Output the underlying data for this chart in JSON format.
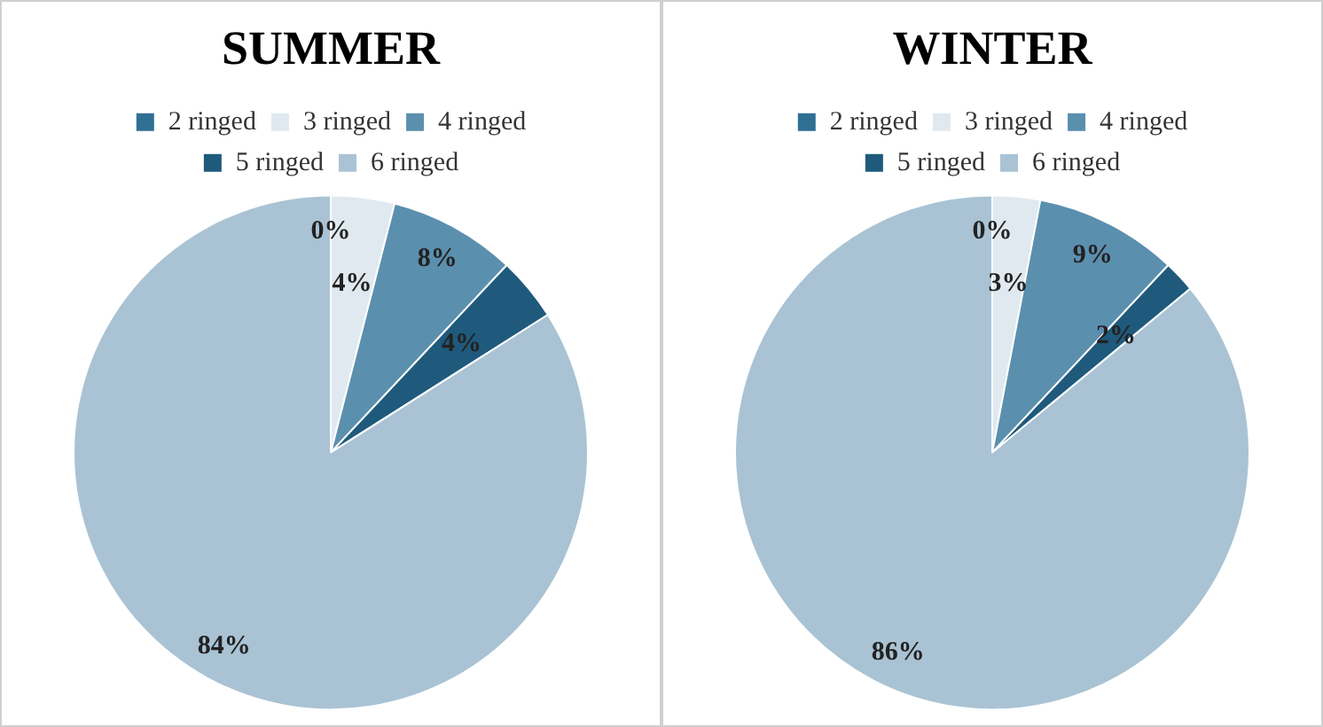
{
  "chart_data": [
    {
      "type": "pie",
      "title": "SUMMER",
      "categories": [
        "2 ringed",
        "3 ringed",
        "4 ringed",
        "5 ringed",
        "6 ringed"
      ],
      "values": [
        0,
        4,
        8,
        4,
        84
      ],
      "value_labels": [
        "0%",
        "4%",
        "8%",
        "4%",
        "84%"
      ],
      "colors": [
        "#2f6f93",
        "#dfe9ef",
        "#5b8fae",
        "#1f5a7c",
        "#a9c3d4"
      ],
      "legend": "top"
    },
    {
      "type": "pie",
      "title": "WINTER",
      "categories": [
        "2 ringed",
        "3 ringed",
        "4 ringed",
        "5 ringed",
        "6 ringed"
      ],
      "values": [
        0,
        3,
        9,
        2,
        86
      ],
      "value_labels": [
        "0%",
        "3%",
        "9%",
        "2%",
        "86%"
      ],
      "colors": [
        "#2f6f93",
        "#dfe9ef",
        "#5b8fae",
        "#1f5a7c",
        "#a9c3d4"
      ],
      "legend": "top"
    }
  ]
}
